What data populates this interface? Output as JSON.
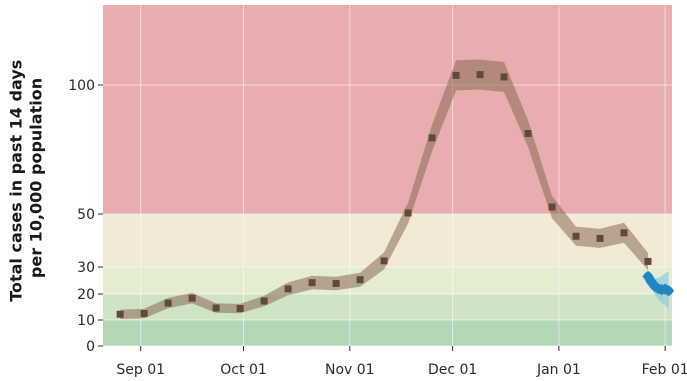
{
  "chart_data": {
    "type": "line",
    "ylabel_line1": "Total cases in past 14 days",
    "ylabel_line2": "per 10,000 population",
    "ylim": [
      0,
      125
    ],
    "xlim": [
      "2020-08-21",
      "2021-02-03"
    ],
    "y_ticks": [
      0,
      10,
      20,
      30,
      50,
      100
    ],
    "x_ticks": [
      {
        "date": "2020-09-01",
        "label": "Sep 01"
      },
      {
        "date": "2020-10-01",
        "label": "Oct 01"
      },
      {
        "date": "2020-11-01",
        "label": "Nov 01"
      },
      {
        "date": "2020-12-01",
        "label": "Dec 01"
      },
      {
        "date": "2021-01-01",
        "label": "Jan 01"
      },
      {
        "date": "2021-02-01",
        "label": "Feb 01"
      }
    ],
    "bands": [
      {
        "from": 0,
        "to": 10,
        "color": "#b6d6b8"
      },
      {
        "from": 10,
        "to": 20,
        "color": "#cfe3c6"
      },
      {
        "from": 20,
        "to": 30,
        "color": "#e4ecd2"
      },
      {
        "from": 30,
        "to": 50,
        "color": "#f2ead6"
      },
      {
        "from": 50,
        "to": 125,
        "color": "#e8adae"
      }
    ],
    "series": [
      {
        "color": "#5f4a3c",
        "band_color": "#8a6a5a",
        "points": [
          {
            "x": "2020-08-26",
            "y": 12.2
          },
          {
            "x": "2020-09-02",
            "y": 12.5
          },
          {
            "x": "2020-09-09",
            "y": 16.5
          },
          {
            "x": "2020-09-16",
            "y": 18.4
          },
          {
            "x": "2020-09-23",
            "y": 14.6
          },
          {
            "x": "2020-09-30",
            "y": 14.4
          },
          {
            "x": "2020-10-07",
            "y": 17.3
          },
          {
            "x": "2020-10-14",
            "y": 21.9
          },
          {
            "x": "2020-10-21",
            "y": 24.2
          },
          {
            "x": "2020-10-28",
            "y": 23.9
          },
          {
            "x": "2020-11-04",
            "y": 25.3
          },
          {
            "x": "2020-11-11",
            "y": 32.3
          },
          {
            "x": "2020-11-18",
            "y": 50.4
          },
          {
            "x": "2020-11-25",
            "y": 79.5
          },
          {
            "x": "2020-12-02",
            "y": 103.7
          },
          {
            "x": "2020-12-09",
            "y": 104.0
          },
          {
            "x": "2020-12-16",
            "y": 103.1
          },
          {
            "x": "2020-12-23",
            "y": 81.2
          },
          {
            "x": "2020-12-30",
            "y": 52.7
          },
          {
            "x": "2021-01-06",
            "y": 41.6
          },
          {
            "x": "2021-01-13",
            "y": 40.8
          },
          {
            "x": "2021-01-20",
            "y": 42.9
          },
          {
            "x": "2021-01-27",
            "y": 32.1
          }
        ],
        "band_halfwidth": [
          1.8,
          1.8,
          2.0,
          2.0,
          1.8,
          1.8,
          2.0,
          2.4,
          2.5,
          2.5,
          2.6,
          3.2,
          4.0,
          5.2,
          5.8,
          5.8,
          5.8,
          5.2,
          4.3,
          3.6,
          3.6,
          3.8,
          3.2
        ]
      },
      {
        "color": "#2b9bd0",
        "band_color": "#7fc7dd",
        "points": [
          {
            "x": "2021-01-27",
            "y": 26.5
          },
          {
            "x": "2021-01-28",
            "y": 24.5
          },
          {
            "x": "2021-01-29",
            "y": 22.8
          },
          {
            "x": "2021-01-30",
            "y": 22.0
          },
          {
            "x": "2021-01-31",
            "y": 21.6
          },
          {
            "x": "2021-02-01",
            "y": 21.8
          },
          {
            "x": "2021-02-02",
            "y": 21.2
          }
        ],
        "band_halfwidth": [
          1.0,
          2.0,
          3.0,
          4.0,
          5.0,
          6.0,
          7.0
        ]
      }
    ]
  }
}
